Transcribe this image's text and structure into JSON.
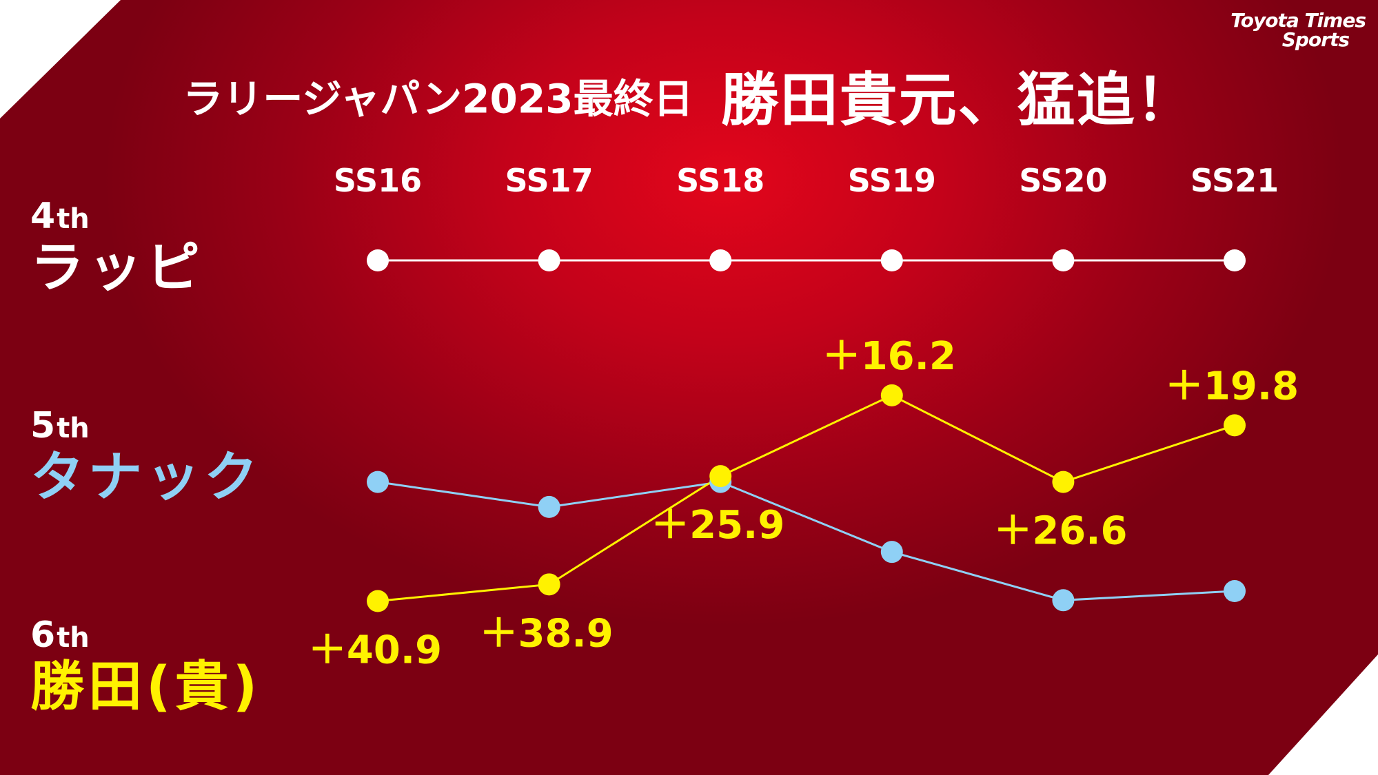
{
  "title": {
    "sub": "ラリージャパン2023最終日",
    "main": "勝田貴元、猛追！"
  },
  "logo": {
    "line1": "Toyota Times",
    "line2": "Sports"
  },
  "colors": {
    "lappi": "#ffffff",
    "tanak": "#8fd0f5",
    "katsuta": "#fff200"
  },
  "chart_data": {
    "type": "line",
    "categories": [
      "SS16",
      "SS17",
      "SS18",
      "SS19",
      "SS20",
      "SS21"
    ],
    "y_positions": [
      "4th",
      "5th",
      "6th"
    ],
    "series": [
      {
        "name": "ラッピ",
        "position": "4th",
        "line_color": "#ffffff",
        "values": [
          0,
          0,
          0,
          0,
          0,
          0
        ]
      },
      {
        "name": "タナック",
        "position": "5th",
        "line_color": "#8fd0f5",
        "values": [
          -26.6,
          -29.6,
          -26.6,
          -35.0,
          -40.8,
          -39.7
        ]
      },
      {
        "name": "勝田(貴)",
        "position": "6th",
        "line_color": "#fff200",
        "values": [
          -40.9,
          -38.9,
          -25.9,
          -16.2,
          -26.6,
          -19.8
        ],
        "data_labels": [
          "＋40.9",
          "＋38.9",
          "＋25.9",
          "＋16.2",
          "＋26.6",
          "＋19.8"
        ]
      }
    ],
    "ylim": [
      -44,
      0
    ]
  },
  "ranks": [
    {
      "pos": "4",
      "suffix": "th",
      "name": "ラッピ",
      "color": "#ffffff"
    },
    {
      "pos": "5",
      "suffix": "th",
      "name": "タナック",
      "color": "#8fd0f5"
    },
    {
      "pos": "6",
      "suffix": "th",
      "name": "勝田(貴)",
      "color": "#fff200"
    }
  ]
}
